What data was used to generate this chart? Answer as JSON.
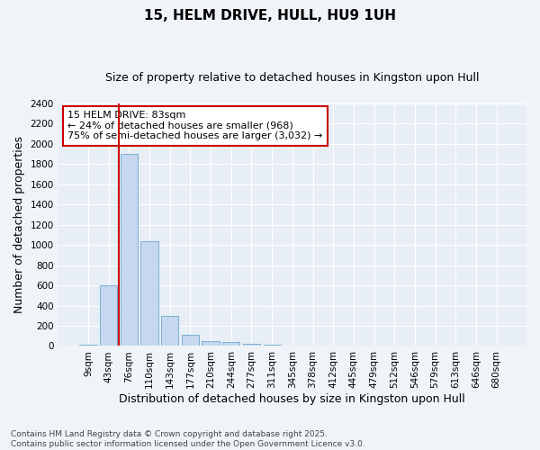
{
  "title": "15, HELM DRIVE, HULL, HU9 1UH",
  "subtitle": "Size of property relative to detached houses in Kingston upon Hull",
  "xlabel": "Distribution of detached houses by size in Kingston upon Hull",
  "ylabel": "Number of detached properties",
  "footnote": "Contains HM Land Registry data © Crown copyright and database right 2025.\nContains public sector information licensed under the Open Government Licence v3.0.",
  "bar_labels": [
    "9sqm",
    "43sqm",
    "76sqm",
    "110sqm",
    "143sqm",
    "177sqm",
    "210sqm",
    "244sqm",
    "277sqm",
    "311sqm",
    "345sqm",
    "378sqm",
    "412sqm",
    "445sqm",
    "479sqm",
    "512sqm",
    "546sqm",
    "579sqm",
    "613sqm",
    "646sqm",
    "680sqm"
  ],
  "bar_values": [
    10,
    600,
    1900,
    1040,
    295,
    115,
    50,
    40,
    25,
    10,
    0,
    0,
    0,
    0,
    0,
    0,
    0,
    0,
    0,
    0,
    0
  ],
  "bar_color": "#c5d8ef",
  "bar_edge_color": "#7bafd4",
  "annotation_text": "15 HELM DRIVE: 83sqm\n← 24% of detached houses are smaller (968)\n75% of semi-detached houses are larger (3,032) →",
  "annotation_box_facecolor": "#ffffff",
  "annotation_box_edgecolor": "#cc0000",
  "vline_x": 2.0,
  "vline_color": "#cc0000",
  "ylim": [
    0,
    2400
  ],
  "yticks": [
    0,
    200,
    400,
    600,
    800,
    1000,
    1200,
    1400,
    1600,
    1800,
    2000,
    2200,
    2400
  ],
  "fig_bg_color": "#f0f4f8",
  "plot_bg_color": "#e8eef5",
  "grid_color": "#ffffff",
  "title_fontsize": 11,
  "subtitle_fontsize": 9,
  "axis_label_fontsize": 9,
  "tick_fontsize": 7.5,
  "annotation_fontsize": 8,
  "footnote_fontsize": 6.5
}
